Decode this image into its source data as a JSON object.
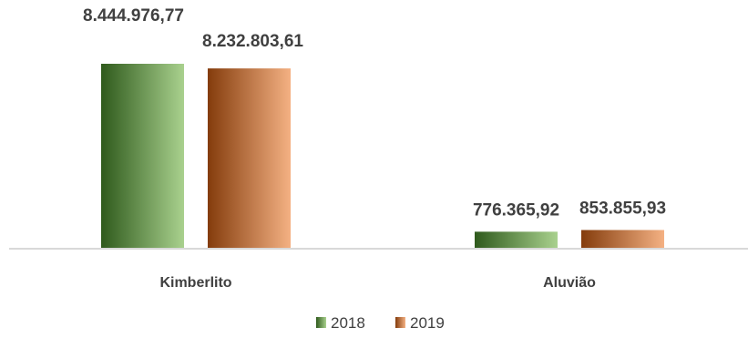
{
  "chart_data": {
    "type": "bar",
    "categories": [
      "Kimberlito",
      "Aluvião"
    ],
    "series": [
      {
        "name": "2018",
        "values": [
          8444976.77,
          776365.92
        ],
        "labels": [
          "8.444.976,77",
          "776.365,92"
        ],
        "color_dark": "#2f5a1c",
        "color_light": "#a9d18e"
      },
      {
        "name": "2019",
        "values": [
          8232803.61,
          853855.93
        ],
        "labels": [
          "8.232.803,61",
          "853.855,93"
        ],
        "color_dark": "#843c0c",
        "color_light": "#f4b183"
      }
    ],
    "ylim": [
      0,
      8444976.77
    ],
    "grid": false,
    "legend": "bottom-center",
    "axis_color": "#d9d9d9"
  }
}
